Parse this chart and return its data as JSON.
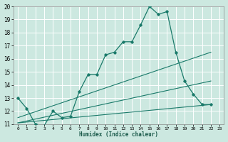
{
  "title": "",
  "xlabel": "Humidex (Indice chaleur)",
  "xlim": [
    -0.5,
    23.5
  ],
  "ylim": [
    11,
    20
  ],
  "xticks": [
    0,
    1,
    2,
    3,
    4,
    5,
    6,
    7,
    8,
    9,
    10,
    11,
    12,
    13,
    14,
    15,
    16,
    17,
    18,
    19,
    20,
    21,
    22,
    23
  ],
  "yticks": [
    11,
    12,
    13,
    14,
    15,
    16,
    17,
    18,
    19,
    20
  ],
  "bg_color": "#cce8e0",
  "grid_color": "#b8ddd5",
  "line_color": "#1a7a6a",
  "line1_x": [
    0,
    1,
    2,
    3,
    4,
    5,
    6,
    7,
    8,
    9,
    10,
    11,
    12,
    13,
    14,
    15,
    16,
    17,
    18,
    19,
    20,
    21,
    22
  ],
  "line1_y": [
    13.0,
    12.2,
    11.0,
    10.9,
    12.0,
    11.5,
    11.6,
    13.5,
    14.8,
    14.8,
    16.3,
    16.5,
    17.3,
    17.3,
    18.6,
    20.0,
    19.4,
    19.6,
    16.5,
    14.3,
    13.3,
    12.5,
    12.5
  ],
  "line2_x": [
    0,
    22
  ],
  "line2_y": [
    11.5,
    16.5
  ],
  "line3_x": [
    0,
    22
  ],
  "line3_y": [
    11.1,
    12.5
  ],
  "line4_x": [
    0,
    22
  ],
  "line4_y": [
    11.1,
    14.3
  ]
}
